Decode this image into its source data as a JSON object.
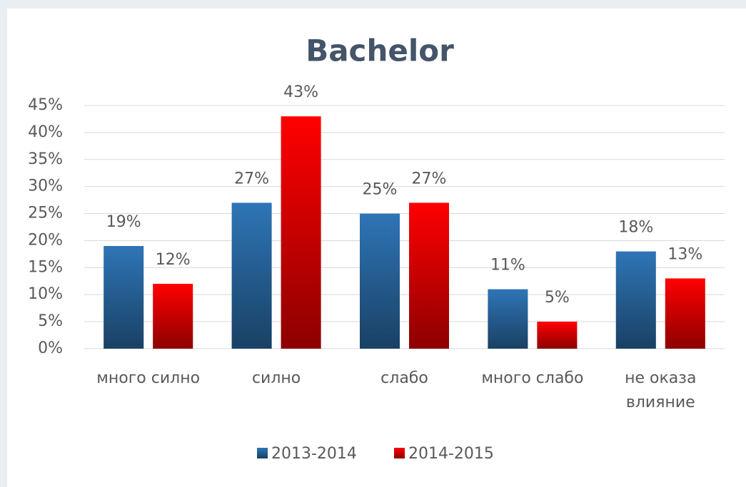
{
  "chart_data": {
    "type": "bar",
    "title": "Bachelor",
    "categories": [
      "много силно",
      "силно",
      "слабо",
      "много слабо",
      "не оказа влияние"
    ],
    "series": [
      {
        "name": "2013-2014",
        "color": "#2e75b6",
        "values": [
          19,
          27,
          25,
          11,
          18
        ],
        "value_labels": [
          "19%",
          "27%",
          "25%",
          "11%",
          "18%"
        ]
      },
      {
        "name": "2014-2015",
        "color": "#ff0000",
        "values": [
          12,
          43,
          27,
          5,
          13
        ],
        "value_labels": [
          "12%",
          "43%",
          "27%",
          "5%",
          "13%"
        ]
      }
    ],
    "ylim": [
      0,
      45
    ],
    "yticks": [
      {
        "value": 0,
        "label": "0%"
      },
      {
        "value": 5,
        "label": "5%"
      },
      {
        "value": 10,
        "label": "10%"
      },
      {
        "value": 15,
        "label": "15%"
      },
      {
        "value": 20,
        "label": "20%"
      },
      {
        "value": 25,
        "label": "25%"
      },
      {
        "value": 30,
        "label": "30%"
      },
      {
        "value": 35,
        "label": "35%"
      },
      {
        "value": 40,
        "label": "40%"
      },
      {
        "value": 45,
        "label": "45%"
      }
    ],
    "grid": true,
    "legend": "bottom"
  }
}
